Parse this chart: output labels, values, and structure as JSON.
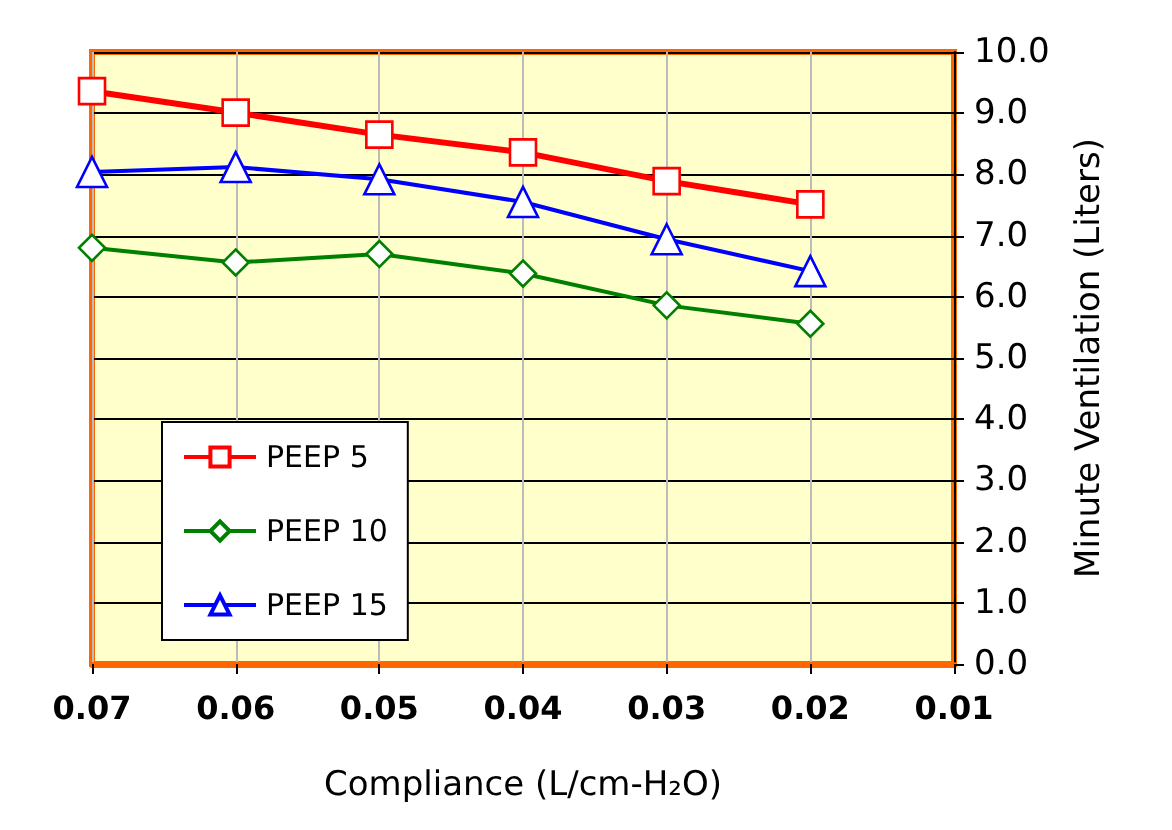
{
  "chart_data": {
    "type": "line",
    "xlabel": "Compliance (L/cm-H₂O)",
    "ylabel": "Minute Ventilation (Liters)",
    "x": [
      0.07,
      0.06,
      0.05,
      0.04,
      0.03,
      0.02
    ],
    "series": [
      {
        "name": "PEEP 5",
        "color": "#ff0000",
        "marker": "square",
        "values": [
          9.36,
          9.01,
          8.65,
          8.36,
          7.89,
          7.51
        ]
      },
      {
        "name": "PEEP 10",
        "color": "#008000",
        "marker": "diamond",
        "values": [
          6.8,
          6.56,
          6.7,
          6.38,
          5.86,
          5.56
        ]
      },
      {
        "name": "PEEP 15",
        "color": "#0000ff",
        "marker": "triangle",
        "values": [
          8.04,
          8.12,
          7.92,
          7.55,
          6.94,
          6.42
        ]
      }
    ],
    "xlim": [
      0.07,
      0.01
    ],
    "xticks": [
      0.07,
      0.06,
      0.05,
      0.04,
      0.03,
      0.02,
      0.01
    ],
    "ylim": [
      0,
      10
    ],
    "yticks": [
      {
        "value": 0,
        "label": "0.0"
      },
      {
        "value": 1,
        "label": "1.0"
      },
      {
        "value": 2,
        "label": "2.0"
      },
      {
        "value": 3,
        "label": "3.0"
      },
      {
        "value": 4,
        "label": "4.0"
      },
      {
        "value": 5,
        "label": "5.0"
      },
      {
        "value": 6,
        "label": "6.0"
      },
      {
        "value": 7,
        "label": "7.0"
      },
      {
        "value": 8,
        "label": "8.0"
      },
      {
        "value": 9,
        "label": "9.0"
      },
      {
        "value": 10,
        "label": "10.0"
      }
    ],
    "grid": true,
    "legend": "bottom left"
  }
}
